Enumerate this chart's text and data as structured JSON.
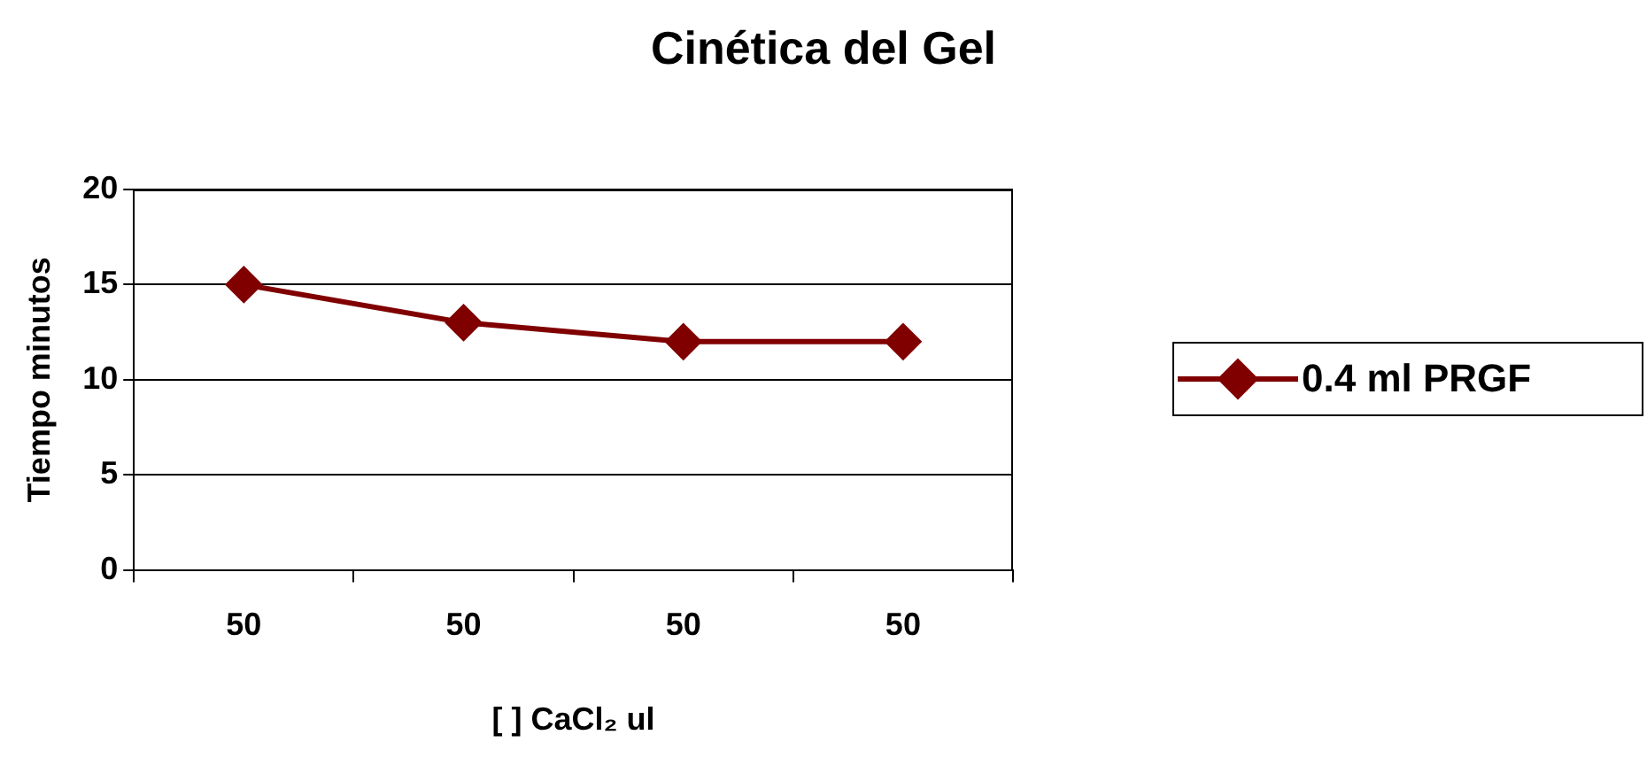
{
  "chart_data": {
    "type": "line",
    "title": "Cinética del Gel",
    "xlabel": "[ ] CaCl₂ ul",
    "ylabel": "Tiempo minutos",
    "categories": [
      "50",
      "50",
      "50",
      "50"
    ],
    "series": [
      {
        "name": "0.4 ml PRGF",
        "color": "#800000",
        "values": [
          15,
          13,
          12,
          12
        ]
      }
    ],
    "ylim": [
      0,
      20
    ],
    "yticks": [
      0,
      5,
      10,
      15,
      20
    ],
    "grid": "y",
    "legend": "right",
    "marker": "diamond",
    "line_style": "solid"
  }
}
